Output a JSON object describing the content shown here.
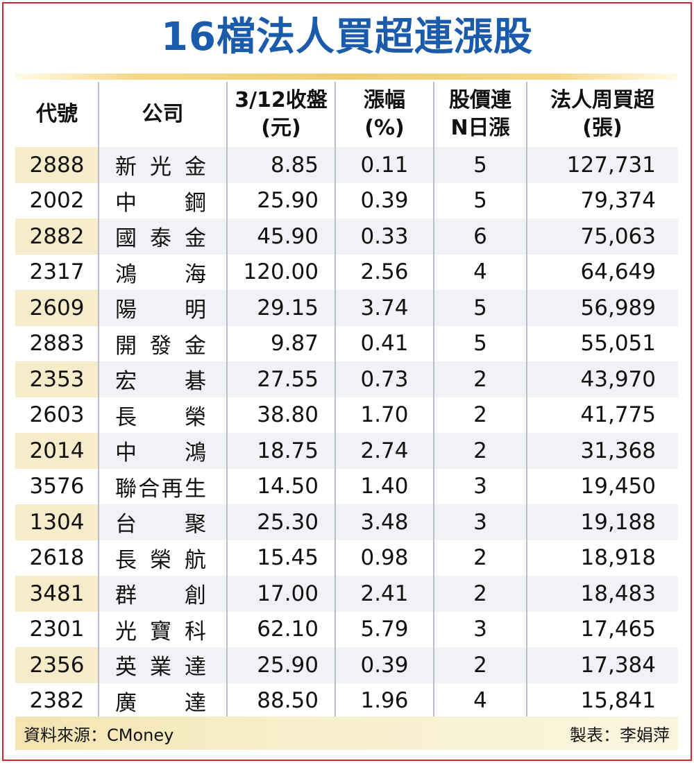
{
  "title": "16檔法人買超連漲股",
  "headers": [
    "代號",
    "公司",
    "3/12收盤\n(元)",
    "漲幅\n(%)",
    "股價連\nN日漲",
    "法人周買超\n(張)"
  ],
  "rows": [
    {
      "code": "2888",
      "company": [
        "新",
        "光",
        "金"
      ],
      "close": "8.85",
      "change": "0.11",
      "days": "5",
      "buy": "127,731"
    },
    {
      "code": "2002",
      "company": [
        "中",
        "鋼"
      ],
      "close": "25.90",
      "change": "0.39",
      "days": "5",
      "buy": "79,374"
    },
    {
      "code": "2882",
      "company": [
        "國",
        "泰",
        "金"
      ],
      "close": "45.90",
      "change": "0.33",
      "days": "6",
      "buy": "75,063"
    },
    {
      "code": "2317",
      "company": [
        "鴻",
        "海"
      ],
      "close": "120.00",
      "change": "2.56",
      "days": "4",
      "buy": "64,649"
    },
    {
      "code": "2609",
      "company": [
        "陽",
        "明"
      ],
      "close": "29.15",
      "change": "3.74",
      "days": "5",
      "buy": "56,989"
    },
    {
      "code": "2883",
      "company": [
        "開",
        "發",
        "金"
      ],
      "close": "9.87",
      "change": "0.41",
      "days": "5",
      "buy": "55,051"
    },
    {
      "code": "2353",
      "company": [
        "宏",
        "碁"
      ],
      "close": "27.55",
      "change": "0.73",
      "days": "2",
      "buy": "43,970"
    },
    {
      "code": "2603",
      "company": [
        "長",
        "榮"
      ],
      "close": "38.80",
      "change": "1.70",
      "days": "2",
      "buy": "41,775"
    },
    {
      "code": "2014",
      "company": [
        "中",
        "鴻"
      ],
      "close": "18.75",
      "change": "2.74",
      "days": "2",
      "buy": "31,368"
    },
    {
      "code": "3576",
      "company": [
        "聯",
        "合",
        "再",
        "生"
      ],
      "close": "14.50",
      "change": "1.40",
      "days": "3",
      "buy": "19,450"
    },
    {
      "code": "1304",
      "company": [
        "台",
        "聚"
      ],
      "close": "25.30",
      "change": "3.48",
      "days": "3",
      "buy": "19,188"
    },
    {
      "code": "2618",
      "company": [
        "長",
        "榮",
        "航"
      ],
      "close": "15.45",
      "change": "0.98",
      "days": "2",
      "buy": "18,918"
    },
    {
      "code": "3481",
      "company": [
        "群",
        "創"
      ],
      "close": "17.00",
      "change": "2.41",
      "days": "2",
      "buy": "18,483"
    },
    {
      "code": "2301",
      "company": [
        "光",
        "寶",
        "科"
      ],
      "close": "62.10",
      "change": "5.79",
      "days": "3",
      "buy": "17,465"
    },
    {
      "code": "2356",
      "company": [
        "英",
        "業",
        "達"
      ],
      "close": "25.90",
      "change": "0.39",
      "days": "2",
      "buy": "17,384"
    },
    {
      "code": "2382",
      "company": [
        "廣",
        "達"
      ],
      "close": "88.50",
      "change": "1.96",
      "days": "4",
      "buy": "15,841"
    }
  ],
  "footer": {
    "source": "資料來源：CMoney",
    "credit": "製表：李娟萍"
  },
  "colors": {
    "title": "#1a5bab",
    "border": "#d2232a",
    "gold": "#efcf73",
    "stripe": "#f1f2f6",
    "code_stripe": "#f6ecc9"
  }
}
